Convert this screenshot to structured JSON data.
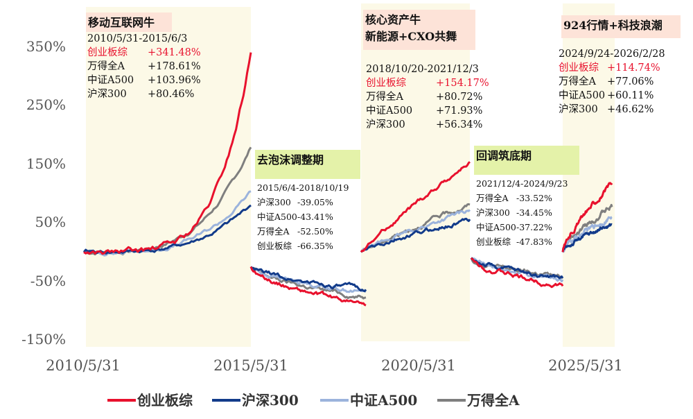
{
  "chart_data": {
    "type": "line",
    "y_axis": {
      "ticks": [
        "350%",
        "250%",
        "150%",
        "50%",
        "-50%",
        "-150%"
      ],
      "tick_values": [
        350,
        250,
        150,
        50,
        -50,
        -150
      ],
      "ylim": [
        -150,
        350
      ]
    },
    "x_axis": {
      "ticks": [
        "2010/5/31",
        "2015/5/31",
        "2020/5/31",
        "2025/5/31"
      ]
    },
    "legend": {
      "position": "bottom",
      "items": [
        {
          "label": "创业板综",
          "color": "#e8112d"
        },
        {
          "label": "沪深300",
          "color": "#123b8a"
        },
        {
          "label": "中证A500",
          "color": "#9bb3dc"
        },
        {
          "label": "万得全A",
          "color": "#7f7f7f"
        }
      ]
    },
    "series_colors": {
      "cyb": "#e8112d",
      "hs300": "#123b8a",
      "a500": "#9bb3dc",
      "wind": "#7f7f7f"
    },
    "periods": [
      {
        "title": [
          "移动互联网牛"
        ],
        "range": "2010/5/31-2015/6/3",
        "kind": "bull",
        "stats": [
          {
            "name": "创业板综",
            "value": "+341.48%",
            "highlight": true
          },
          {
            "name": "万得全A",
            "value": "+178.61%"
          },
          {
            "name": "中证A500",
            "value": "+103.96%"
          },
          {
            "name": "沪深300",
            "value": "+80.46%"
          }
        ],
        "endpoints": {
          "cyb": 341,
          "wind": 179,
          "a500": 104,
          "hs300": 80
        }
      },
      {
        "title": [
          "去泡沫调整期"
        ],
        "range": "2015/6/4-2018/10/19",
        "kind": "bear",
        "stats": [
          {
            "name": "沪深300",
            "value": "-39.05%"
          },
          {
            "name": "中证A500",
            "value": "-43.41%"
          },
          {
            "name": "万得全A",
            "value": "-52.50%"
          },
          {
            "name": "创业板综",
            "value": "-66.35%"
          }
        ],
        "endpoints": {
          "hs300": -39,
          "a500": -43,
          "wind": -52.5,
          "cyb": -66
        }
      },
      {
        "title": [
          "核心资产牛",
          "新能源+CXO共舞"
        ],
        "range": "2018/10/20-2021/12/3",
        "kind": "bull",
        "stats": [
          {
            "name": "创业板综",
            "value": "+154.17%",
            "highlight": true
          },
          {
            "name": "万得全A",
            "value": "+80.72%"
          },
          {
            "name": "中证A500",
            "value": "+71.93%"
          },
          {
            "name": "沪深300",
            "value": "+56.34%"
          }
        ],
        "endpoints": {
          "cyb": 154,
          "wind": 81,
          "a500": 72,
          "hs300": 56
        }
      },
      {
        "title": [
          "回调筑底期"
        ],
        "range": "2021/12/4-2024/9/23",
        "kind": "bear",
        "stats": [
          {
            "name": "万得全A",
            "value": "-33.52%"
          },
          {
            "name": "沪深300",
            "value": "-34.45%"
          },
          {
            "name": "中证A500",
            "value": "-37.22%"
          },
          {
            "name": "创业板综",
            "value": "-47.83%"
          }
        ],
        "endpoints": {
          "wind": -33.5,
          "hs300": -34.5,
          "a500": -37,
          "cyb": -48
        }
      },
      {
        "title": [
          "924行情+科技浪潮"
        ],
        "range": "2024/9/24-2026/2/28",
        "kind": "bull",
        "stats": [
          {
            "name": "创业板综",
            "value": "+114.74%",
            "highlight": true
          },
          {
            "name": "万得全A",
            "value": "+77.06%"
          },
          {
            "name": "中证A500",
            "value": "+60.11%"
          },
          {
            "name": "沪深300",
            "value": "+46.62%"
          }
        ],
        "endpoints": {
          "cyb": 115,
          "wind": 77,
          "a500": 60,
          "hs300": 47
        }
      }
    ]
  }
}
